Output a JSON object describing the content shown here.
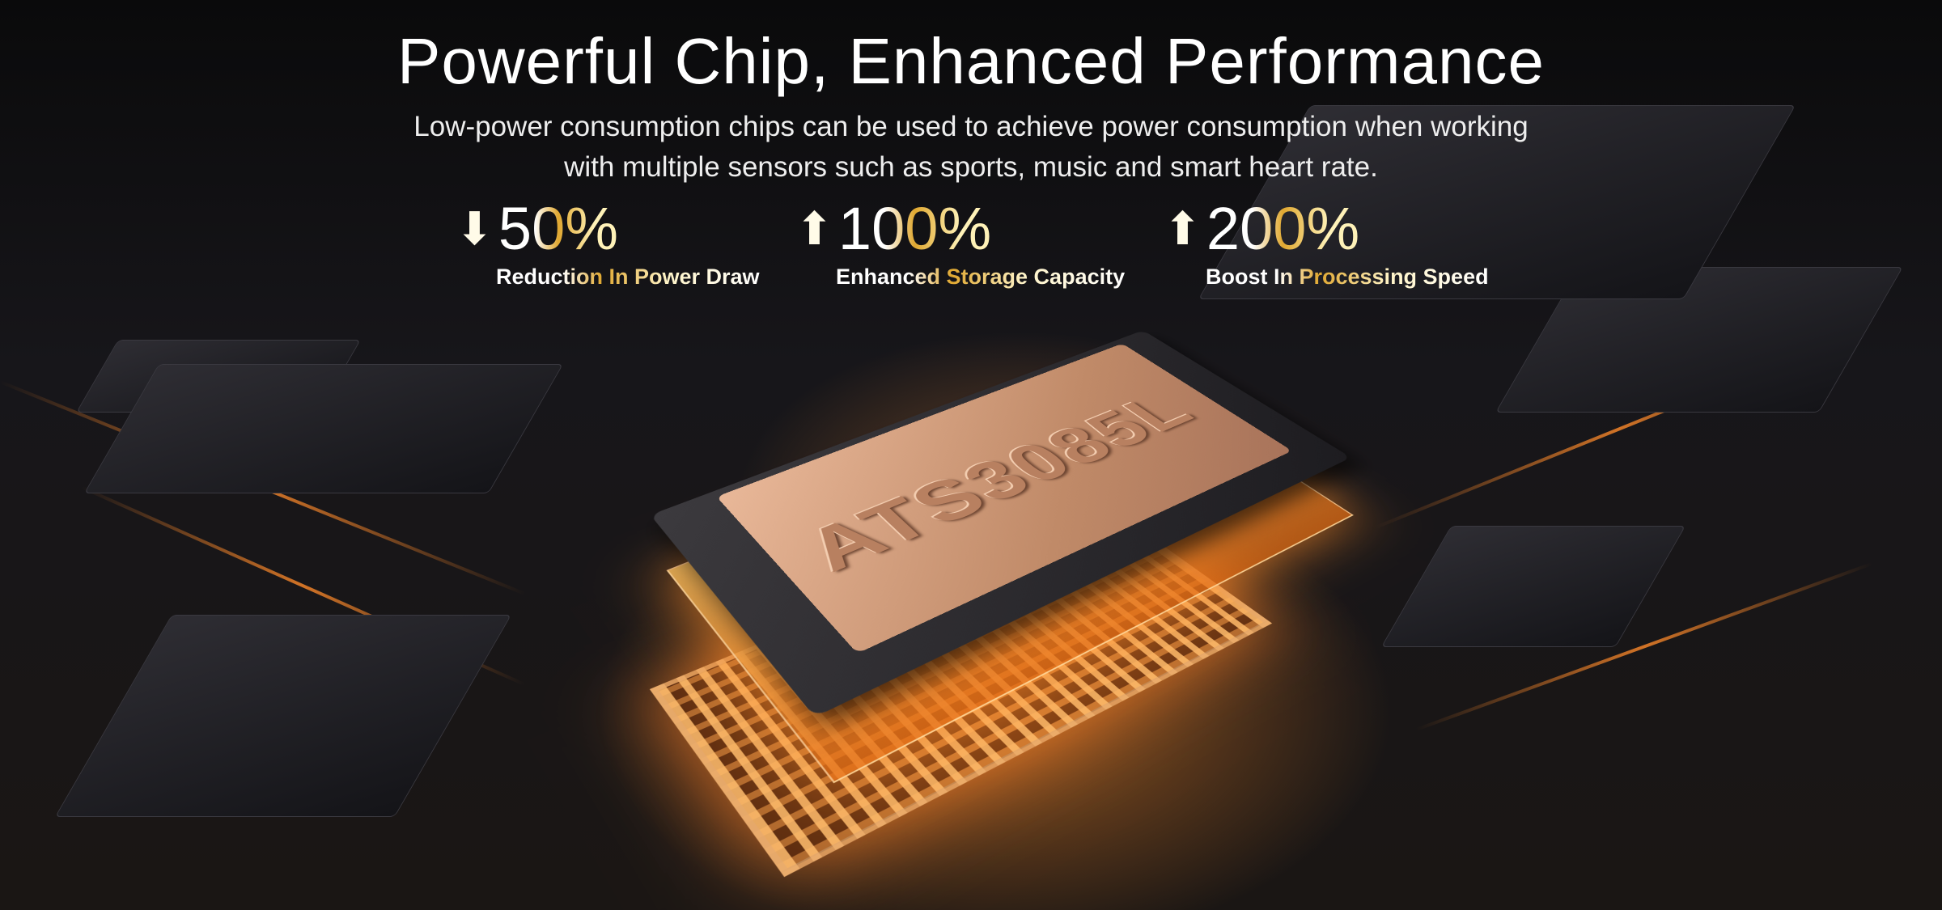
{
  "header": {
    "title": "Powerful Chip, Enhanced Performance",
    "subtitle_line1": "Low-power consumption chips can be used to achieve power consumption when working",
    "subtitle_line2": "with multiple sensors such as sports, music and smart heart rate."
  },
  "stats": [
    {
      "icon": "arrow-down-icon",
      "arrow": "⬇",
      "value": "50%",
      "label": "Reduction In Power Draw"
    },
    {
      "icon": "arrow-up-icon",
      "arrow": "⬆",
      "value": "100%",
      "label": "Enhanced Storage Capacity"
    },
    {
      "icon": "arrow-up-icon",
      "arrow": "⬆",
      "value": "200%",
      "label": "Boost In Processing Speed"
    }
  ],
  "chip": {
    "marking": "ATS3085L"
  },
  "colors": {
    "accent_gold": "#e0a830",
    "glow": "#ff8a2a",
    "background": "#0d0c0d"
  }
}
